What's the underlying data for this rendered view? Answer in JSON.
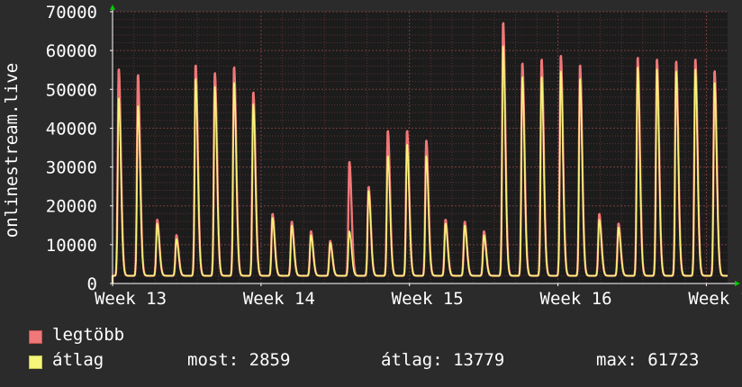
{
  "chart_data": {
    "type": "area",
    "ylabel": "onlinestream.live",
    "ylim": [
      0,
      70000
    ],
    "yticks": [
      {
        "value": 0,
        "label": "0"
      },
      {
        "value": 10000,
        "label": "10000"
      },
      {
        "value": 20000,
        "label": "20000"
      },
      {
        "value": 30000,
        "label": "30000"
      },
      {
        "value": 40000,
        "label": "40000"
      },
      {
        "value": 50000,
        "label": "50000"
      },
      {
        "value": 60000,
        "label": "60000"
      },
      {
        "value": 70000,
        "label": "70000"
      }
    ],
    "xlim": [
      0,
      29
    ],
    "xticks": [
      {
        "value": 0,
        "label": "Week 13"
      },
      {
        "value": 7,
        "label": "Week 14"
      },
      {
        "value": 14,
        "label": "Week 15"
      },
      {
        "value": 21,
        "label": "Week 16"
      },
      {
        "value": 28,
        "label": "Week 17"
      }
    ],
    "grid": true,
    "series": [
      {
        "name": "legtöbb",
        "color": "#f07878",
        "daily_peaks": [
          55500,
          54000,
          16500,
          12500,
          56500,
          54500,
          56000,
          49500,
          18000,
          16000,
          13500,
          11000,
          31500,
          25000,
          39500,
          39500,
          37000,
          16500,
          16000,
          13500,
          67500,
          57000,
          58000,
          59000,
          56500,
          18000,
          15500,
          58500,
          58000,
          57500,
          58000,
          55000
        ]
      },
      {
        "name": "átlag",
        "color": "#f5f57a",
        "daily_peaks": [
          48000,
          46000,
          15500,
          11500,
          53000,
          51000,
          52000,
          46500,
          17000,
          15000,
          12500,
          10500,
          13500,
          24000,
          33000,
          36000,
          33000,
          15500,
          15000,
          12500,
          61500,
          53500,
          53500,
          55000,
          53000,
          16500,
          14500,
          56000,
          55500,
          55000,
          55500,
          52000
        ]
      }
    ]
  },
  "legend": {
    "max_label": "legtöbb",
    "avg_label": "átlag",
    "now_text": "most: 2859",
    "avg_text": "átlag: 13779",
    "max_text": "max: 61723"
  },
  "colors": {
    "background": "#2b2b2b",
    "plot_background": "#1c1c1c",
    "grid_minor": "#5a3030",
    "grid_major": "#7a3c3c",
    "axis": "#ffffff",
    "arrow": "#00cc00"
  }
}
